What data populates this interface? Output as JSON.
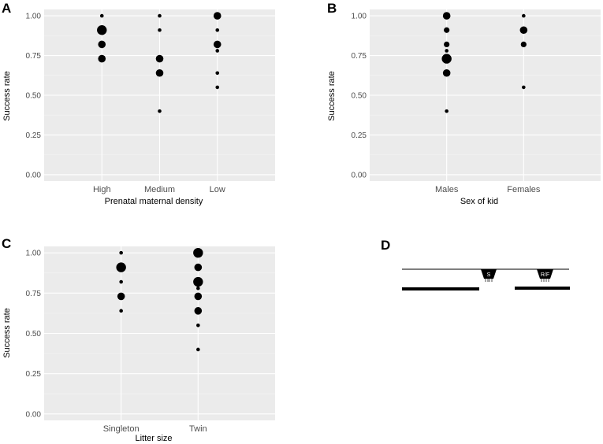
{
  "colors": {
    "panel_bg": "#ebebeb",
    "grid_major": "#ffffff",
    "grid_minor": "#f4f4f4",
    "points": "#000000"
  },
  "chart_data": [
    {
      "panel": "A",
      "type": "scatter",
      "xlabel": "Prenatal maternal density",
      "ylabel": "Success rate",
      "categories": [
        "High",
        "Medium",
        "Low"
      ],
      "ylim": [
        -0.04,
        1.04
      ],
      "yticks": [
        "0.00",
        "0.25",
        "0.50",
        "0.75",
        "1.00"
      ],
      "ytick_values": [
        0,
        0.25,
        0.5,
        0.75,
        1
      ],
      "grid": true,
      "points": [
        {
          "x": "High",
          "y": 1.0,
          "size": 1
        },
        {
          "x": "High",
          "y": 0.91,
          "size": 4
        },
        {
          "x": "High",
          "y": 0.82,
          "size": 3
        },
        {
          "x": "High",
          "y": 0.73,
          "size": 3
        },
        {
          "x": "Medium",
          "y": 1.0,
          "size": 1
        },
        {
          "x": "Medium",
          "y": 0.91,
          "size": 1
        },
        {
          "x": "Medium",
          "y": 0.73,
          "size": 3
        },
        {
          "x": "Medium",
          "y": 0.64,
          "size": 3
        },
        {
          "x": "Medium",
          "y": 0.4,
          "size": 1
        },
        {
          "x": "Low",
          "y": 1.0,
          "size": 3
        },
        {
          "x": "Low",
          "y": 0.91,
          "size": 1
        },
        {
          "x": "Low",
          "y": 0.82,
          "size": 3
        },
        {
          "x": "Low",
          "y": 0.78,
          "size": 1
        },
        {
          "x": "Low",
          "y": 0.64,
          "size": 1
        },
        {
          "x": "Low",
          "y": 0.55,
          "size": 1
        }
      ]
    },
    {
      "panel": "B",
      "type": "scatter",
      "xlabel": "Sex of kid",
      "ylabel": "Success rate",
      "categories": [
        "Males",
        "Females"
      ],
      "ylim": [
        -0.04,
        1.04
      ],
      "yticks": [
        "0.00",
        "0.25",
        "0.50",
        "0.75",
        "1.00"
      ],
      "ytick_values": [
        0,
        0.25,
        0.5,
        0.75,
        1
      ],
      "grid": true,
      "points": [
        {
          "x": "Males",
          "y": 1.0,
          "size": 3
        },
        {
          "x": "Males",
          "y": 0.91,
          "size": 2
        },
        {
          "x": "Males",
          "y": 0.82,
          "size": 2
        },
        {
          "x": "Males",
          "y": 0.78,
          "size": 1
        },
        {
          "x": "Males",
          "y": 0.73,
          "size": 4
        },
        {
          "x": "Males",
          "y": 0.64,
          "size": 3
        },
        {
          "x": "Males",
          "y": 0.4,
          "size": 1
        },
        {
          "x": "Females",
          "y": 1.0,
          "size": 1
        },
        {
          "x": "Females",
          "y": 0.91,
          "size": 3
        },
        {
          "x": "Females",
          "y": 0.82,
          "size": 2
        },
        {
          "x": "Females",
          "y": 0.55,
          "size": 1
        }
      ]
    },
    {
      "panel": "C",
      "type": "scatter",
      "xlabel": "Litter size",
      "ylabel": "Success rate",
      "categories": [
        "Singleton",
        "Twin"
      ],
      "ylim": [
        -0.04,
        1.04
      ],
      "yticks": [
        "0.00",
        "0.25",
        "0.50",
        "0.75",
        "1.00"
      ],
      "ytick_values": [
        0,
        0.25,
        0.5,
        0.75,
        1
      ],
      "grid": true,
      "points": [
        {
          "x": "Singleton",
          "y": 1.0,
          "size": 1
        },
        {
          "x": "Singleton",
          "y": 0.91,
          "size": 4
        },
        {
          "x": "Singleton",
          "y": 0.82,
          "size": 1
        },
        {
          "x": "Singleton",
          "y": 0.73,
          "size": 3
        },
        {
          "x": "Singleton",
          "y": 0.64,
          "size": 1
        },
        {
          "x": "Twin",
          "y": 1.0,
          "size": 4
        },
        {
          "x": "Twin",
          "y": 0.91,
          "size": 3
        },
        {
          "x": "Twin",
          "y": 0.82,
          "size": 4
        },
        {
          "x": "Twin",
          "y": 0.78,
          "size": 1
        },
        {
          "x": "Twin",
          "y": 0.73,
          "size": 3
        },
        {
          "x": "Twin",
          "y": 0.64,
          "size": 3
        },
        {
          "x": "Twin",
          "y": 0.55,
          "size": 1
        },
        {
          "x": "Twin",
          "y": 0.4,
          "size": 1
        }
      ]
    }
  ],
  "schematic": {
    "panel": "D",
    "start_label": "S",
    "target_label": "R/F"
  }
}
